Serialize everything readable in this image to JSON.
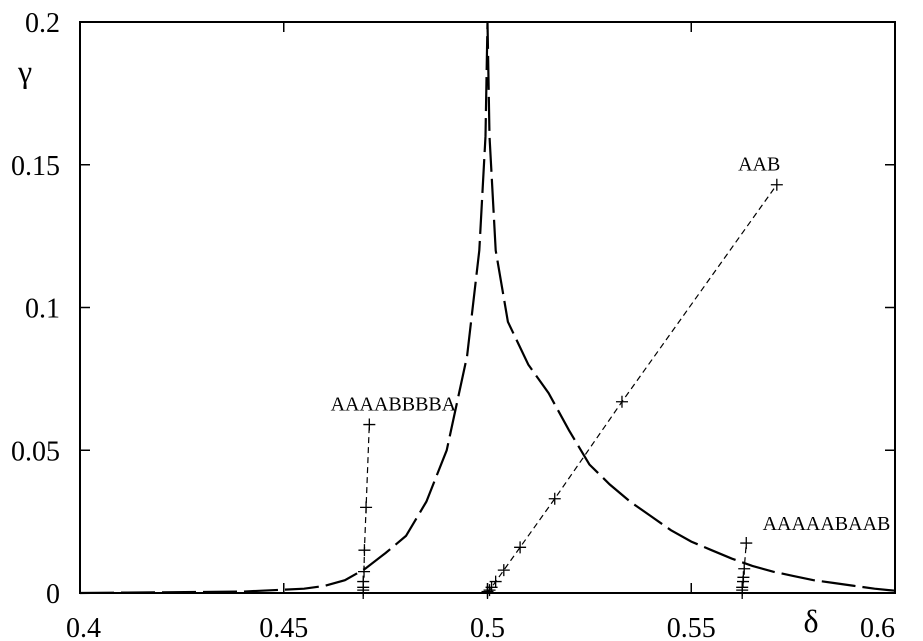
{
  "chart_data": {
    "type": "line",
    "title": "",
    "xlabel": "δ",
    "ylabel": "γ",
    "xlim": [
      0.4,
      0.6
    ],
    "ylim": [
      0,
      0.2
    ],
    "xticks": [
      {
        "value": 0.4,
        "label": "0.4"
      },
      {
        "value": 0.45,
        "label": "0.45"
      },
      {
        "value": 0.5,
        "label": "0.5"
      },
      {
        "value": 0.55,
        "label": "0.55"
      },
      {
        "value": 0.6,
        "label": "0.6"
      }
    ],
    "yticks": [
      {
        "value": 0,
        "label": "0"
      },
      {
        "value": 0.05,
        "label": "0.05"
      },
      {
        "value": 0.1,
        "label": "0.1"
      },
      {
        "value": 0.15,
        "label": "0.15"
      },
      {
        "value": 0.2,
        "label": "0.2"
      }
    ],
    "grid": false,
    "series": [
      {
        "style": "long-dash",
        "marker": "none",
        "points": [
          [
            0.4,
            0.0
          ],
          [
            0.44,
            0.0005
          ],
          [
            0.455,
            0.0015
          ],
          [
            0.46,
            0.0025
          ],
          [
            0.465,
            0.0045
          ],
          [
            0.47,
            0.0085
          ],
          [
            0.475,
            0.014
          ],
          [
            0.48,
            0.02
          ],
          [
            0.485,
            0.032
          ],
          [
            0.49,
            0.05
          ],
          [
            0.495,
            0.083
          ],
          [
            0.498,
            0.12
          ],
          [
            0.4995,
            0.16
          ],
          [
            0.5,
            0.2
          ],
          [
            0.5005,
            0.16
          ],
          [
            0.502,
            0.12
          ],
          [
            0.505,
            0.095
          ],
          [
            0.51,
            0.08
          ],
          [
            0.515,
            0.07
          ],
          [
            0.52,
            0.057
          ],
          [
            0.525,
            0.045
          ],
          [
            0.53,
            0.038
          ],
          [
            0.535,
            0.032
          ],
          [
            0.54,
            0.027
          ],
          [
            0.545,
            0.022
          ],
          [
            0.55,
            0.018
          ],
          [
            0.555,
            0.015
          ],
          [
            0.56,
            0.012
          ],
          [
            0.565,
            0.0095
          ],
          [
            0.57,
            0.0075
          ],
          [
            0.575,
            0.006
          ],
          [
            0.58,
            0.0045
          ],
          [
            0.585,
            0.0035
          ],
          [
            0.59,
            0.0025
          ],
          [
            0.595,
            0.0015
          ],
          [
            0.6,
            0.0008
          ]
        ]
      },
      {
        "name": "AAB",
        "style": "short-dash",
        "marker": "plus",
        "points": [
          [
            0.5,
            0.0
          ],
          [
            0.5,
            0.0005
          ],
          [
            0.5005,
            0.001
          ],
          [
            0.501,
            0.002
          ],
          [
            0.502,
            0.004
          ],
          [
            0.504,
            0.008
          ],
          [
            0.508,
            0.016
          ],
          [
            0.5165,
            0.033
          ],
          [
            0.533,
            0.067
          ],
          [
            0.571,
            0.143
          ]
        ]
      },
      {
        "name": "AAAABBBBA",
        "style": "short-dash",
        "marker": "plus",
        "points": [
          [
            0.4695,
            0.0
          ],
          [
            0.4695,
            0.001
          ],
          [
            0.4695,
            0.002
          ],
          [
            0.4695,
            0.004
          ],
          [
            0.4697,
            0.0075
          ],
          [
            0.4698,
            0.015
          ],
          [
            0.4702,
            0.03
          ],
          [
            0.471,
            0.059
          ]
        ]
      },
      {
        "name": "AAAAABAAB",
        "style": "short-dash",
        "marker": "plus",
        "points": [
          [
            0.5625,
            0.0
          ],
          [
            0.5625,
            0.001
          ],
          [
            0.5625,
            0.002
          ],
          [
            0.5627,
            0.004
          ],
          [
            0.5628,
            0.0055
          ],
          [
            0.563,
            0.0085
          ],
          [
            0.5635,
            0.0175
          ]
        ]
      }
    ],
    "annotations": [
      {
        "text": "AAB",
        "x": 0.5615,
        "y": 0.148
      },
      {
        "text": "AAAABBBBA",
        "x": 0.4615,
        "y": 0.064
      },
      {
        "text": "AAAAABAAB",
        "x": 0.5675,
        "y": 0.022
      }
    ]
  }
}
